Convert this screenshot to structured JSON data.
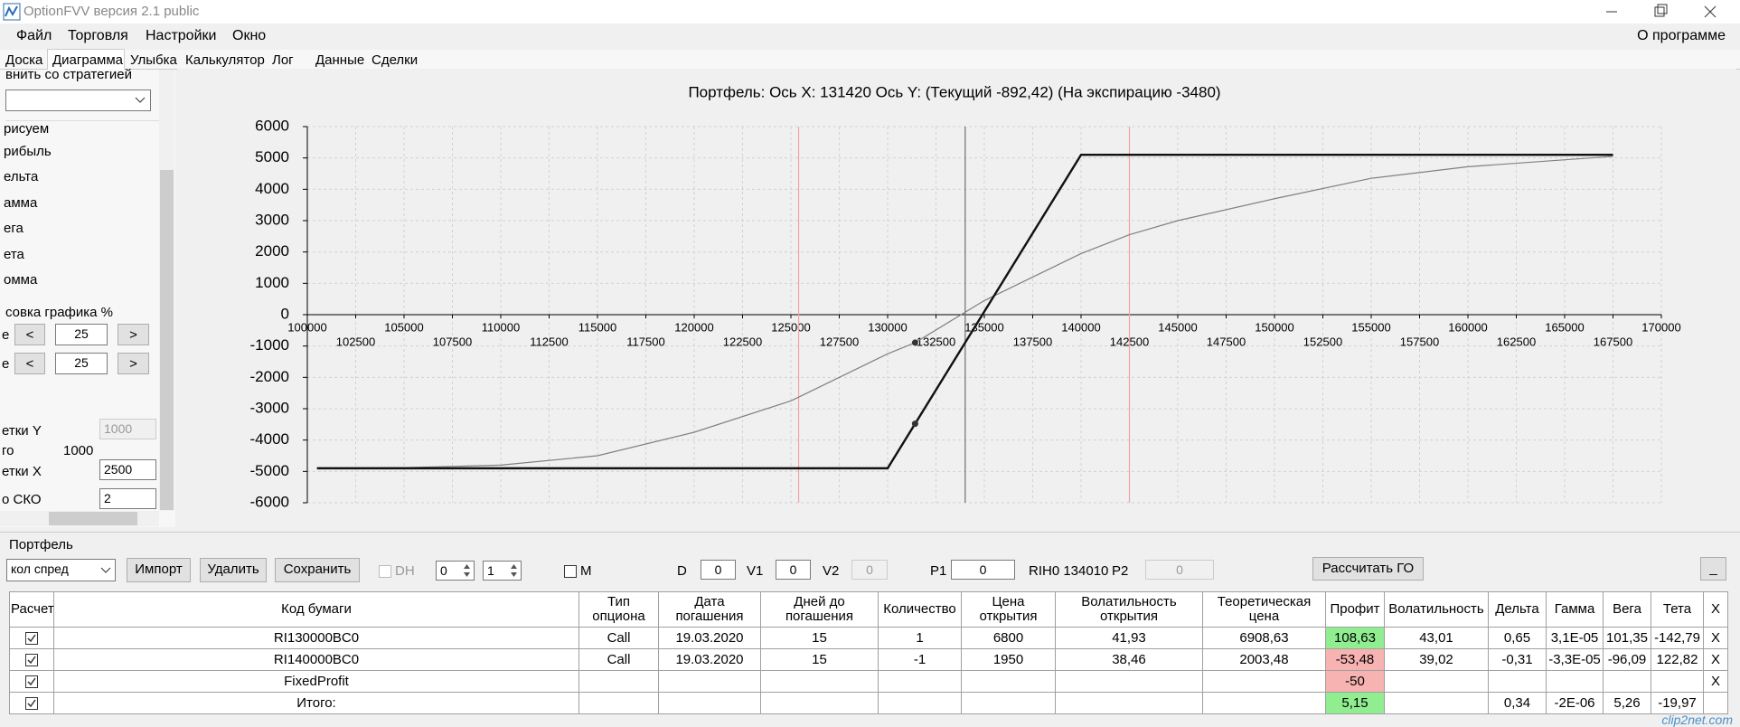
{
  "window": {
    "title": "OptionFVV версия 2.1 public"
  },
  "menu": [
    "Файл",
    "Торговля",
    "Настройки",
    "Окно"
  ],
  "menu_right": "О программе",
  "tabs": [
    "Доска",
    "Диаграмма",
    "Улыбка",
    "Калькулятор",
    "Лог",
    "Данные",
    "Сделки"
  ],
  "sidebar": {
    "strategy_label": "внить со стратегией",
    "items": [
      "рисуем",
      "рибыль",
      "ельта",
      "амма",
      "ега",
      "ета",
      "омма"
    ],
    "scale_label": "совка графика %",
    "scale_rows": [
      {
        "label": "е",
        "prev": "<",
        "value": "25",
        "next": ">"
      },
      {
        "label": "е",
        "prev": "<",
        "value": "25",
        "next": ">"
      }
    ],
    "grid_y_label": "етки Y",
    "grid_y_value": "1000",
    "total_label": "го",
    "total_value": "1000",
    "grid_x_label": "етки X",
    "grid_x_value": "2500",
    "sko_label": "о СКО",
    "sko_value": "2"
  },
  "chart": {
    "type": "line",
    "title": "Портфель: Ось X: 131420 Ось Y:  (Текущий -892,42)  (На экспирацию -3480)",
    "xlim": [
      100000,
      170000
    ],
    "xticks": [
      100000,
      102500,
      105000,
      107500,
      110000,
      112500,
      115000,
      117500,
      120000,
      122500,
      125000,
      127500,
      130000,
      132500,
      135000,
      137500,
      140000,
      142500,
      145000,
      147500,
      150000,
      152500,
      155000,
      157500,
      160000,
      162500,
      165000,
      167500,
      170000
    ],
    "ylim": [
      -6000,
      6000
    ],
    "yticks": [
      -6000,
      -5000,
      -4000,
      -3000,
      -2000,
      -1000,
      0,
      1000,
      2000,
      3000,
      4000,
      5000,
      6000
    ],
    "grid": true,
    "vlines": [
      {
        "value": 125400,
        "color": "#f2a3a3"
      },
      {
        "value": 134010,
        "color": "#6b6b7a"
      },
      {
        "value": 142500,
        "color": "#f2a3a3"
      }
    ],
    "series": [
      {
        "color": "#808080",
        "width": 1.2,
        "x": [
          100500,
          105000,
          110000,
          115000,
          120000,
          125000,
          130000,
          131420,
          135000,
          140000,
          142500,
          145000,
          150000,
          155000,
          160000,
          167500
        ],
        "values": [
          -4900,
          -4880,
          -4800,
          -4500,
          -3750,
          -2750,
          -1250,
          -892.42,
          450,
          1950,
          2550,
          3000,
          3700,
          4350,
          4720,
          5050
        ]
      },
      {
        "color": "#111111",
        "width": 2.4,
        "x": [
          100500,
          130000,
          140000,
          167500
        ],
        "values": [
          -4900,
          -4900,
          5100,
          5100
        ]
      }
    ],
    "points": [
      {
        "x": 131420,
        "y": -3480
      },
      {
        "x": 131420,
        "y": -892.42
      }
    ]
  },
  "portfolio": {
    "label": "Портфель",
    "strategy": "кол спред",
    "buttons": [
      "Импорт",
      "Удалить",
      "Сохранить"
    ],
    "dh": "DH",
    "spin1": "0",
    "spin2": "1",
    "m": "M",
    "d_label": "D",
    "d_value": "0",
    "v1_label": "V1",
    "v1_value": "0",
    "v2_label": "V2",
    "v2_value": "0",
    "p1_label": "P1",
    "p1_value": "0",
    "underlying": "RIH0 134010",
    "p2_label": "P2",
    "p2_value": "0",
    "calc_button": "Рассчитать ГО",
    "minimize_button": "_"
  },
  "table": {
    "header": [
      "Расчет",
      "Код бумаги",
      "Тип\nопциона",
      "Дата\nпогашения",
      "Дней до\nпогашения",
      "Количество",
      "Цена\nоткрытия",
      "Волатильность\nоткрытия",
      "Теоретическая\nцена",
      "Профит",
      "Волатильность",
      "Дельта",
      "Гамма",
      "Вега",
      "Тета",
      "X"
    ],
    "rows": [
      {
        "profit_color": "#90ee90",
        "cells": [
          "RI130000BC0",
          "Call",
          "19.03.2020",
          "15",
          "1",
          "6800",
          "41,93",
          "6908,63",
          "108,63",
          "43,01",
          "0,65",
          "3,1E-05",
          "101,35",
          "-142,79",
          "X"
        ]
      },
      {
        "profit_color": "#f7b2b2",
        "cells": [
          "RI140000BC0",
          "Call",
          "19.03.2020",
          "15",
          "-1",
          "1950",
          "38,46",
          "2003,48",
          "-53,48",
          "39,02",
          "-0,31",
          "-3,3E-05",
          "-96,09",
          "122,82",
          "X"
        ]
      },
      {
        "profit_color": "#f7b2b2",
        "cells": [
          "FixedProfit",
          null,
          null,
          null,
          null,
          null,
          null,
          null,
          "-50",
          null,
          null,
          null,
          null,
          null,
          "X"
        ]
      },
      {
        "profit_color": "#90ee90",
        "cells": [
          "Итого:",
          null,
          null,
          null,
          null,
          null,
          null,
          null,
          "5,15",
          null,
          "0,34",
          "-2E-06",
          "5,26",
          "-19,97",
          null
        ]
      }
    ]
  },
  "watermark": "clip2net.com"
}
